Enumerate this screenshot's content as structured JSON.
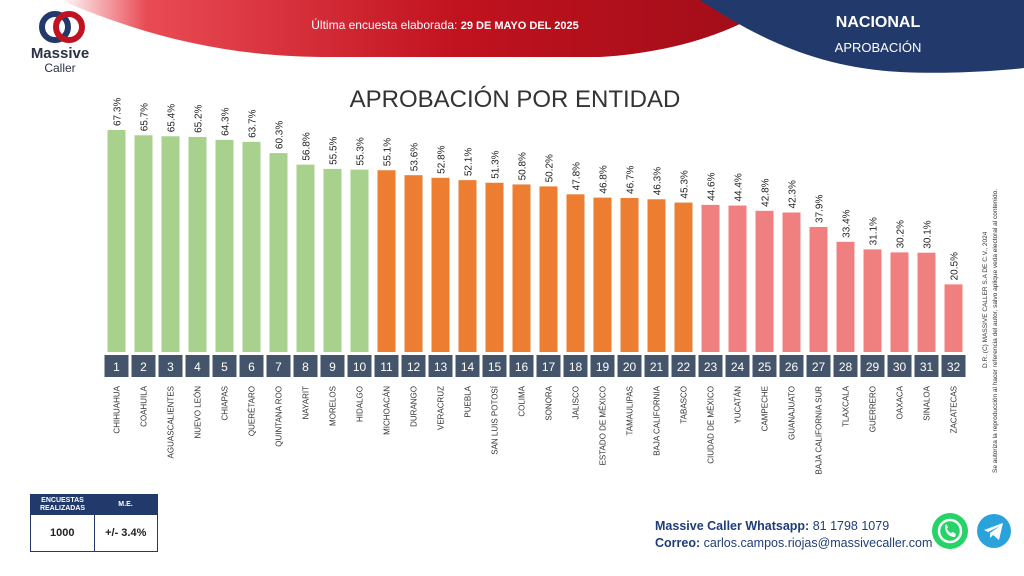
{
  "header": {
    "logo_line1": "Massive",
    "logo_line2": "Caller",
    "survey_label": "Última encuesta elaborada:",
    "survey_date": "29 DE MAYO DEL 2025",
    "scope": "NACIONAL",
    "metric": "APROBACIÓN"
  },
  "colors": {
    "red": "#c1121f",
    "navy": "#223a6b",
    "green": "#a9d18e",
    "orange": "#ed7d31",
    "pink": "#f08080",
    "rank_box": "#44546a"
  },
  "chart_data": {
    "type": "bar",
    "title": "APROBACIÓN POR ENTIDAD",
    "categories": [
      "CHIHUAHUA",
      "COAHUILA",
      "AGUASCALIENTES",
      "NUEVO LEÓN",
      "CHIAPAS",
      "QUERÉTARO",
      "QUINTANA ROO",
      "NAYARIT",
      "MORELOS",
      "HIDALGO",
      "MICHOACÁN",
      "DURANGO",
      "VERACRUZ",
      "PUEBLA",
      "SAN LUIS POTOSÍ",
      "COLIMA",
      "SONORA",
      "JALISCO",
      "ESTADO DE MÉXICO",
      "TAMAULIPAS",
      "BAJA CALIFORNIA",
      "TABASCO",
      "CIUDAD DE MÉXICO",
      "YUCATÁN",
      "CAMPECHE",
      "GUANAJUATO",
      "BAJA CALIFORNIA SUR",
      "TLAXCALA",
      "GUERRERO",
      "OAXACA",
      "SINALOA",
      "ZACATECAS"
    ],
    "values": [
      67.3,
      65.7,
      65.4,
      65.2,
      64.3,
      63.7,
      60.3,
      56.8,
      55.5,
      55.3,
      55.1,
      53.6,
      52.8,
      52.1,
      51.3,
      50.8,
      50.2,
      47.8,
      46.8,
      46.7,
      46.3,
      45.3,
      44.6,
      44.4,
      42.8,
      42.3,
      37.9,
      33.4,
      31.1,
      30.2,
      30.1,
      20.5
    ],
    "value_labels": [
      "67.3%",
      "65.7%",
      "65.4%",
      "65.2%",
      "64.3%",
      "63.7%",
      "60.3%",
      "56.8%",
      "55.5%",
      "55.3%",
      "55.1%",
      "53.6%",
      "52.8%",
      "52.1%",
      "51.3%",
      "50.8%",
      "50.2%",
      "47.8%",
      "46.8%",
      "46.7%",
      "46.3%",
      "45.3%",
      "44.6%",
      "44.4%",
      "42.8%",
      "42.3%",
      "37.9%",
      "33.4%",
      "31.1%",
      "30.2%",
      "30.1%",
      "20.5%"
    ],
    "ranks": [
      "1",
      "2",
      "3",
      "4",
      "5",
      "6",
      "7",
      "8",
      "9",
      "10",
      "11",
      "12",
      "13",
      "14",
      "15",
      "16",
      "17",
      "18",
      "19",
      "20",
      "21",
      "22",
      "23",
      "24",
      "25",
      "26",
      "27",
      "28",
      "29",
      "30",
      "31",
      "32"
    ],
    "color_groups": [
      "green",
      "green",
      "green",
      "green",
      "green",
      "green",
      "green",
      "green",
      "green",
      "green",
      "orange",
      "orange",
      "orange",
      "orange",
      "orange",
      "orange",
      "orange",
      "orange",
      "orange",
      "orange",
      "orange",
      "orange",
      "pink",
      "pink",
      "pink",
      "pink",
      "pink",
      "pink",
      "pink",
      "pink",
      "pink",
      "pink"
    ],
    "ylim": [
      0,
      67.3
    ],
    "grid": false,
    "legend": "none"
  },
  "footer": {
    "me_col1": "ENCUESTAS REALIZADAS",
    "me_col2": "M.E.",
    "surveys": "1000",
    "margin": "+/- 3.4%",
    "whatsapp_label": "Massive Caller Whatsapp:",
    "whatsapp_number": "81 1798 1079",
    "email_label": "Correo:",
    "email": "carlos.campos.riojas@massivecaller.com",
    "copyright_line1": "D.R. (C) MASSIVE CALLER S.A DE C.V., 2024",
    "copyright_line2": "Se autoriza la reproducción al hacer referencia del autor, salvo aplique veda electoral al contenido.",
    "whatsapp_icon": "whatsapp-icon",
    "telegram_icon": "telegram-icon"
  }
}
